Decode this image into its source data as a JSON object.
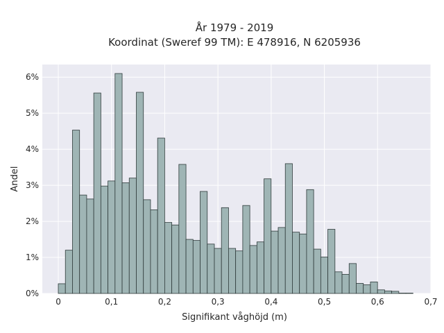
{
  "chart_data": {
    "type": "bar",
    "title": "År 1979 - 2019",
    "subtitle": "Koordinat (Sweref 99 TM): E 478916, N 6205936",
    "xlabel": "Signifikant våghöjd (m)",
    "ylabel": "Andel",
    "xlim": [
      -0.03,
      0.7
    ],
    "ylim": [
      0,
      6.35
    ],
    "x_ticks": [
      0,
      0.1,
      0.2,
      0.3,
      0.4,
      0.5,
      0.6,
      0.7
    ],
    "x_tick_labels": [
      "0",
      "0,1",
      "0,2",
      "0,3",
      "0,4",
      "0,5",
      "0,6",
      "0,7"
    ],
    "y_ticks": [
      0,
      1,
      2,
      3,
      4,
      5,
      6
    ],
    "y_tick_labels": [
      "0%",
      "1%",
      "2%",
      "3%",
      "4%",
      "5%",
      "6%"
    ],
    "grid": true,
    "bin_width": 0.01333,
    "bin_start": 0.0,
    "values": [
      0.27,
      1.2,
      4.53,
      2.73,
      2.62,
      5.56,
      2.98,
      3.12,
      6.1,
      3.07,
      3.2,
      5.58,
      2.6,
      2.32,
      4.31,
      1.97,
      1.9,
      3.58,
      1.5,
      1.47,
      2.83,
      1.37,
      1.25,
      2.38,
      1.25,
      1.18,
      2.44,
      1.33,
      1.43,
      3.18,
      1.73,
      1.83,
      3.6,
      1.7,
      1.65,
      2.88,
      1.23,
      1.01,
      1.78,
      0.6,
      0.53,
      0.83,
      0.28,
      0.24,
      0.32,
      0.1,
      0.07,
      0.06,
      0.01,
      0.01
    ],
    "colors": {
      "bar_fill": "#9fb5b5",
      "bar_edge": "#2f3b3b",
      "plot_bg": "#eaeaf2",
      "grid": "#ffffff"
    }
  }
}
